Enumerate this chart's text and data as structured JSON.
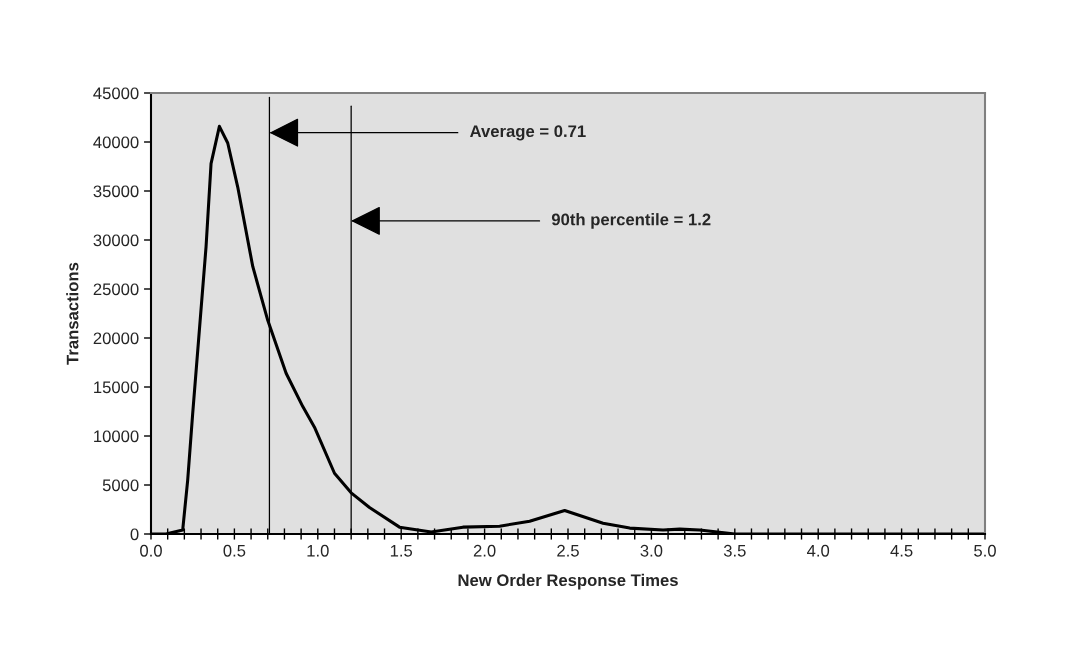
{
  "chart_data": {
    "type": "line",
    "xlabel": "New Order Response Times",
    "ylabel": "Transactions",
    "x": [
      0.0,
      0.09,
      0.19,
      0.22,
      0.25,
      0.29,
      0.33,
      0.36,
      0.41,
      0.46,
      0.52,
      0.61,
      0.7,
      0.81,
      0.91,
      0.98,
      1.1,
      1.2,
      1.31,
      1.49,
      1.68,
      1.87,
      2.09,
      2.27,
      2.48,
      2.71,
      2.87,
      3.07,
      3.17,
      3.29,
      3.5,
      4.0,
      4.5,
      5.0
    ],
    "values": [
      0,
      0,
      400,
      5500,
      12300,
      20800,
      29300,
      37800,
      41600,
      39900,
      35400,
      27300,
      21800,
      16400,
      13000,
      10900,
      6200,
      4200,
      2700,
      700,
      200,
      700,
      800,
      1300,
      2400,
      1100,
      600,
      400,
      500,
      400,
      0,
      0,
      0,
      0
    ],
    "color": "#000000",
    "xlim": [
      0,
      5
    ],
    "ylim": [
      0,
      45000
    ],
    "xticks": [
      {
        "value": 0,
        "label": "0.0"
      },
      {
        "value": 0.1,
        "label": null
      },
      {
        "value": 0.2,
        "label": null
      },
      {
        "value": 0.3,
        "label": null
      },
      {
        "value": 0.4,
        "label": null
      },
      {
        "value": 0.5,
        "label": "0.5"
      },
      {
        "value": 0.6,
        "label": null
      },
      {
        "value": 0.7,
        "label": null
      },
      {
        "value": 0.8,
        "label": null
      },
      {
        "value": 0.9,
        "label": null
      },
      {
        "value": 1,
        "label": "1.0"
      },
      {
        "value": 1.1,
        "label": null
      },
      {
        "value": 1.2,
        "label": null
      },
      {
        "value": 1.3,
        "label": null
      },
      {
        "value": 1.4,
        "label": null
      },
      {
        "value": 1.5,
        "label": "1.5"
      },
      {
        "value": 1.6,
        "label": null
      },
      {
        "value": 1.7,
        "label": null
      },
      {
        "value": 1.8,
        "label": null
      },
      {
        "value": 1.9,
        "label": null
      },
      {
        "value": 2,
        "label": "2.0"
      },
      {
        "value": 2.1,
        "label": null
      },
      {
        "value": 2.2,
        "label": null
      },
      {
        "value": 2.3,
        "label": null
      },
      {
        "value": 2.4,
        "label": null
      },
      {
        "value": 2.5,
        "label": "2.5"
      },
      {
        "value": 2.6,
        "label": null
      },
      {
        "value": 2.7,
        "label": null
      },
      {
        "value": 2.8,
        "label": null
      },
      {
        "value": 2.9,
        "label": null
      },
      {
        "value": 3,
        "label": "3.0"
      },
      {
        "value": 3.1,
        "label": null
      },
      {
        "value": 3.2,
        "label": null
      },
      {
        "value": 3.3,
        "label": null
      },
      {
        "value": 3.4,
        "label": null
      },
      {
        "value": 3.5,
        "label": "3.5"
      },
      {
        "value": 3.6,
        "label": null
      },
      {
        "value": 3.7,
        "label": null
      },
      {
        "value": 3.8,
        "label": null
      },
      {
        "value": 3.9,
        "label": null
      },
      {
        "value": 4,
        "label": "4.0"
      },
      {
        "value": 4.1,
        "label": null
      },
      {
        "value": 4.2,
        "label": null
      },
      {
        "value": 4.3,
        "label": null
      },
      {
        "value": 4.4,
        "label": null
      },
      {
        "value": 4.5,
        "label": "4.5"
      },
      {
        "value": 4.6,
        "label": null
      },
      {
        "value": 4.7,
        "label": null
      },
      {
        "value": 4.8,
        "label": null
      },
      {
        "value": 4.9,
        "label": null
      },
      {
        "value": 5,
        "label": "5.0"
      }
    ],
    "yticks": [
      0,
      5000,
      10000,
      15000,
      20000,
      25000,
      30000,
      35000,
      40000,
      45000
    ],
    "ref_lines": [
      {
        "axis": "x",
        "value": 0.71,
        "label": "Average = 0.71",
        "color": "#000000"
      },
      {
        "axis": "x",
        "value": 1.2,
        "label": "90th percentile = 1.2",
        "color": "#000000"
      }
    ],
    "grid": false,
    "legend": false,
    "marker": "none",
    "line_style": "solid"
  }
}
